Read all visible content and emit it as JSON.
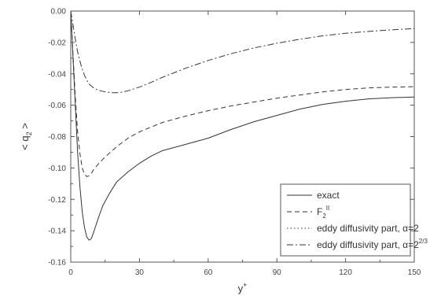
{
  "chart_data": {
    "type": "line",
    "xlabel": "y",
    "xlabel_sup": "+",
    "ylabel": "< q",
    "ylabel_sub": "2",
    "ylabel_close": " >",
    "xlim": [
      0,
      150
    ],
    "ylim": [
      -0.16,
      0.0
    ],
    "xticks": [
      0,
      30,
      60,
      90,
      120,
      150
    ],
    "yticks": [
      0.0,
      -0.02,
      -0.04,
      -0.06,
      -0.08,
      -0.1,
      -0.12,
      -0.14,
      -0.16
    ],
    "xtick_labels": [
      "0",
      "30",
      "60",
      "90",
      "120",
      "150"
    ],
    "ytick_labels": [
      "0.00",
      "-0.02",
      "-0.04",
      "-0.06",
      "-0.08",
      "-0.10",
      "-0.12",
      "-0.14",
      "-0.16"
    ],
    "grid": false,
    "legend_position": "bottom-right",
    "series": [
      {
        "name": "exact",
        "style": "solid",
        "x": [
          0,
          1,
          2,
          3,
          4,
          5,
          6,
          7,
          8,
          9,
          10,
          12,
          14,
          17,
          20,
          25,
          30,
          35,
          40,
          45,
          50,
          60,
          70,
          80,
          90,
          100,
          110,
          120,
          130,
          140,
          150
        ],
        "y": [
          0.0,
          -0.03,
          -0.06,
          -0.09,
          -0.112,
          -0.128,
          -0.138,
          -0.144,
          -0.146,
          -0.145,
          -0.141,
          -0.132,
          -0.124,
          -0.116,
          -0.109,
          -0.1025,
          -0.097,
          -0.0925,
          -0.089,
          -0.087,
          -0.085,
          -0.081,
          -0.0755,
          -0.0705,
          -0.0665,
          -0.0625,
          -0.0595,
          -0.0575,
          -0.056,
          -0.0552,
          -0.0548
        ]
      },
      {
        "name": "F",
        "name_sub": "2",
        "name_sup": "II",
        "style": "dashed",
        "x": [
          0,
          1,
          2,
          3,
          4,
          5,
          6,
          7,
          8,
          9,
          10,
          12,
          15,
          20,
          25,
          30,
          40,
          50,
          60,
          70,
          80,
          90,
          100,
          110,
          120,
          130,
          140,
          150
        ],
        "y": [
          0.0,
          -0.028,
          -0.055,
          -0.077,
          -0.091,
          -0.1,
          -0.104,
          -0.1055,
          -0.105,
          -0.1035,
          -0.101,
          -0.0975,
          -0.093,
          -0.0865,
          -0.081,
          -0.077,
          -0.071,
          -0.067,
          -0.0635,
          -0.0605,
          -0.058,
          -0.0555,
          -0.0535,
          -0.0515,
          -0.05,
          -0.049,
          -0.0485,
          -0.0482
        ]
      },
      {
        "name": "eddy diffusivity part, α=2",
        "style": "dotted",
        "x": [],
        "y": []
      },
      {
        "name": "eddy diffusivity part, α=2",
        "name_sup": "2/3",
        "style": "dashdot",
        "x": [
          0,
          1,
          2,
          3,
          4,
          5,
          6,
          7,
          8,
          10,
          12,
          15,
          18,
          20,
          22,
          25,
          30,
          35,
          40,
          50,
          60,
          70,
          80,
          90,
          100,
          110,
          120,
          130,
          140,
          150
        ],
        "y": [
          0.0,
          -0.009,
          -0.018,
          -0.026,
          -0.032,
          -0.037,
          -0.041,
          -0.044,
          -0.0465,
          -0.049,
          -0.0505,
          -0.0515,
          -0.052,
          -0.052,
          -0.0518,
          -0.0508,
          -0.0485,
          -0.0455,
          -0.0423,
          -0.0365,
          -0.0315,
          -0.0272,
          -0.0235,
          -0.0205,
          -0.018,
          -0.0158,
          -0.0142,
          -0.013,
          -0.012,
          -0.0112
        ]
      }
    ]
  },
  "colors": {
    "line": "#333333",
    "axis": "#555555",
    "background": "#ffffff"
  }
}
